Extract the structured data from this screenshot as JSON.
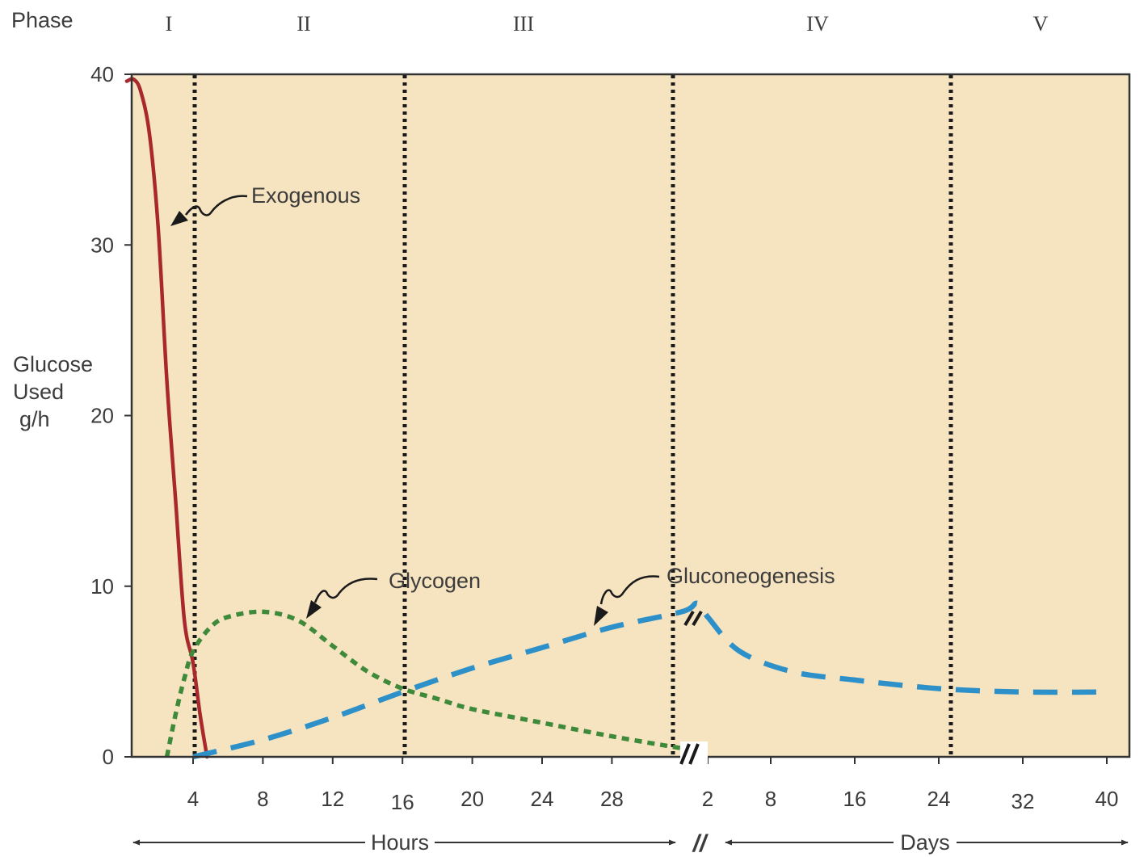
{
  "chart_data": {
    "type": "line",
    "phase_label": "Phase",
    "phases": [
      "I",
      "II",
      "III",
      "IV",
      "V"
    ],
    "ylabel_lines": [
      "Glucose",
      "Used",
      "g/h"
    ],
    "yticks": [
      "0",
      "10",
      "20",
      "30",
      "40"
    ],
    "ylim": [
      0,
      40
    ],
    "hours_ticks": [
      "4",
      "8",
      "12",
      "16",
      "20",
      "24",
      "28"
    ],
    "days_ticks": [
      "2",
      "8",
      "16",
      "24",
      "32",
      "40"
    ],
    "hours_label": "Hours",
    "days_label": "Days",
    "axis_break_symbol": "//",
    "phase_boundaries": [
      "4 h",
      "16 h",
      "2 days",
      "24 days"
    ],
    "series": [
      {
        "name": "Exogenous",
        "color": "#a8282c",
        "style": "solid",
        "points": [
          [
            "0.2 h",
            39.6
          ],
          [
            "0.6 h",
            39.7
          ],
          [
            "1.0 h",
            39.0
          ],
          [
            "1.5 h",
            36.5
          ],
          [
            "2.0 h",
            31.0
          ],
          [
            "2.5 h",
            22.0
          ],
          [
            "3.0 h",
            15.0
          ],
          [
            "3.5 h",
            8.0
          ],
          [
            "4.0 h",
            5.5
          ],
          [
            "4.4 h",
            2.5
          ],
          [
            "4.8 h",
            0.0
          ]
        ]
      },
      {
        "name": "Glycogen",
        "color": "#3e8a3a",
        "style": "dotted",
        "points": [
          [
            "2.5 h",
            0.0
          ],
          [
            "3.0 h",
            2.5
          ],
          [
            "3.5 h",
            4.6
          ],
          [
            "4.0 h",
            6.2
          ],
          [
            "5.0 h",
            7.6
          ],
          [
            "6.0 h",
            8.2
          ],
          [
            "8.0 h",
            8.5
          ],
          [
            "10.0 h",
            8.0
          ],
          [
            "12.0 h",
            6.5
          ],
          [
            "14.0 h",
            5.0
          ],
          [
            "16.0 h",
            4.0
          ],
          [
            "18.0 h",
            3.4
          ],
          [
            "20.0 h",
            2.8
          ],
          [
            "24.0 h",
            2.0
          ],
          [
            "28.0 h",
            1.2
          ],
          [
            "32.0 h",
            0.5
          ]
        ]
      },
      {
        "name": "Gluconeogenesis",
        "color": "#2e90c8",
        "style": "dashed",
        "points": [
          [
            "4.0 h",
            0.0
          ],
          [
            "8.0 h",
            1.0
          ],
          [
            "12.0 h",
            2.3
          ],
          [
            "16.0 h",
            3.8
          ],
          [
            "20.0 h",
            5.2
          ],
          [
            "24.0 h",
            6.4
          ],
          [
            "28.0 h",
            7.6
          ],
          [
            "32.0 h",
            8.5
          ],
          [
            "1 d",
            9.0
          ],
          [
            "2 d",
            8.2
          ],
          [
            "5 d",
            6.2
          ],
          [
            "10 d",
            5.0
          ],
          [
            "16 d",
            4.5
          ],
          [
            "24 d",
            4.0
          ],
          [
            "32 d",
            3.8
          ],
          [
            "40 d",
            3.8
          ]
        ]
      }
    ]
  },
  "colors": {
    "plot_background": "#f6e4c0",
    "frame": "#333333",
    "text": "#3c3c3c",
    "phase_line": "#1a1a1a"
  }
}
